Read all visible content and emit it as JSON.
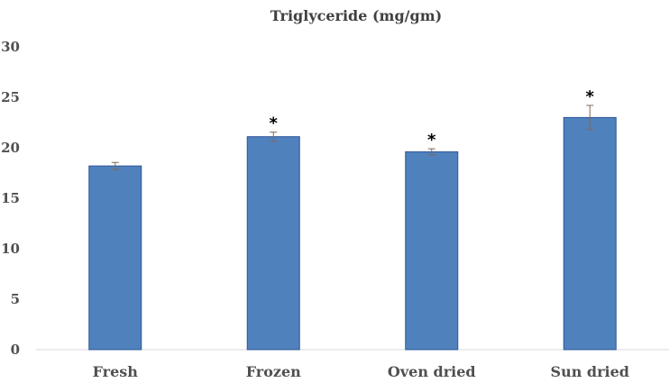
{
  "chart_data": {
    "type": "bar",
    "title": "Triglyceride (mg/gm)",
    "xlabel": "",
    "ylabel": "",
    "categories": [
      "Fresh",
      "Frozen",
      "Oven dried",
      "Sun dried"
    ],
    "values": [
      18.2,
      21.1,
      19.6,
      23.0
    ],
    "error": [
      0.35,
      0.45,
      0.3,
      1.2
    ],
    "significance": [
      "",
      "*",
      "*",
      "*"
    ],
    "ylim": [
      0,
      30
    ],
    "yticks": [
      "0",
      "5",
      "10",
      "15",
      "20",
      "25",
      "30"
    ],
    "grid": false,
    "legend": "none",
    "colors": {
      "bar_fill": "#4f81bd",
      "bar_stroke": "#2f5597",
      "axis": "#d9d9d9",
      "error_bar": "#7f6a5a"
    }
  }
}
